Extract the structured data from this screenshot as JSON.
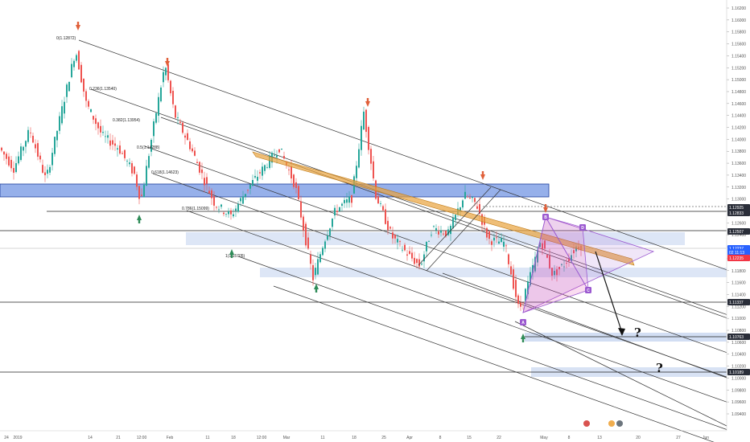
{
  "chart_data": {
    "type": "candlestick",
    "symbol": "EURUSD",
    "y_axis_ticks": [
      "1.16200",
      "1.16000",
      "1.15800",
      "1.15600",
      "1.15400",
      "1.15200",
      "1.15000",
      "1.14800",
      "1.14600",
      "1.14400",
      "1.14200",
      "1.14000",
      "1.13800",
      "1.13600",
      "1.13400",
      "1.13200",
      "1.13000",
      "1.12800",
      "1.12600",
      "1.12400",
      "1.12200",
      "1.12000",
      "1.11800",
      "1.11600",
      "1.11400",
      "1.11200",
      "1.11000",
      "1.10800",
      "1.10600",
      "1.10400",
      "1.10200",
      "1.10000",
      "1.09800",
      "1.09600",
      "1.09400"
    ],
    "x_axis_ticks": [
      "24",
      "2019",
      "14",
      "21",
      "12:00",
      "Feb",
      "11",
      "18",
      "12:00",
      "Mar",
      "11",
      "18",
      "25",
      "Apr",
      "8",
      "15",
      "22",
      "May",
      "8",
      "13",
      "20",
      "27",
      "Jun"
    ],
    "ylim": [
      1.094,
      1.163
    ],
    "fib_levels": [
      {
        "ratio": "0",
        "label": "0(1.12872)",
        "price": 1.12872
      },
      {
        "ratio": "0.236",
        "label": "0.236(1.13540)",
        "price": 1.1354
      },
      {
        "ratio": "0.382",
        "label": "0.382(1.13954)",
        "price": 1.13954
      },
      {
        "ratio": "0.5",
        "label": "0.5(1.14288)",
        "price": 1.14288
      },
      {
        "ratio": "0.618",
        "label": "0.618(1.14623)",
        "price": 1.14623
      },
      {
        "ratio": "0.786",
        "label": "0.786(1.15099)",
        "price": 1.15099
      },
      {
        "ratio": "1",
        "label": "1(1.15705)",
        "price": 1.15705
      }
    ],
    "price_tags": [
      {
        "label": "1.12925",
        "price": 1.12925,
        "color": "#2a2e39"
      },
      {
        "label": "1.12833",
        "price": 1.12833,
        "color": "#2a2e39"
      },
      {
        "label": "1.12507",
        "price": 1.12507,
        "color": "#2a2e39"
      },
      {
        "label": "1.12237",
        "price": 1.12237,
        "color": "#2962ff"
      },
      {
        "label": "02 11:13",
        "price": 1.1214,
        "color": "#2962ff"
      },
      {
        "label": "1.12235",
        "price": 1.1205,
        "color": "#f23645"
      },
      {
        "label": "1.11337",
        "price": 1.11337,
        "color": "#2a2e39"
      },
      {
        "label": "1.10763",
        "price": 1.10763,
        "color": "#2a2e39"
      },
      {
        "label": "1.10189",
        "price": 1.10189,
        "color": "#2a2e39"
      }
    ],
    "harmonic_points": [
      "A",
      "B",
      "C",
      "D"
    ],
    "annotations": [
      "?",
      "?"
    ],
    "colors": {
      "up": "#26a69a",
      "down": "#ef5350",
      "zone": "#c7d6f0",
      "zone_strong": "#3f6fd8",
      "channel": "#333333",
      "band": "#e8a33d",
      "pattern": "#9b59d0",
      "arrow_up": "#2e8b57",
      "arrow_down": "#e0603a"
    }
  }
}
